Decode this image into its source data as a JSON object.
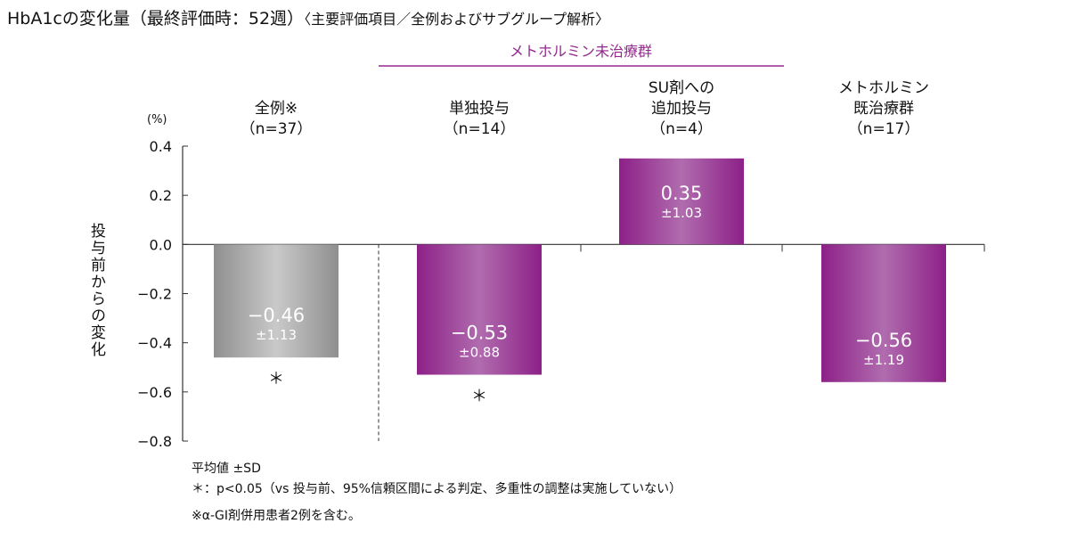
{
  "title": {
    "main": "HbA1cの変化量（最終評価時：52週）",
    "sub": "〈主要評価項目／全例およびサブグループ解析〉"
  },
  "notes": [
    "平均値 ±SD",
    "＊：p<0.05（vs 投与前、95%信頼区間による判定、多重性の調整は実施していない）",
    "※α-GI剤併用患者2例を含む。"
  ],
  "colors": {
    "gray": "#a5a5a5",
    "purple": "#93288f",
    "purple_light": "#b26db0",
    "axis": "#333333"
  },
  "chart_data": {
    "type": "bar",
    "unit_label": "(%)",
    "ylabel": "投与前からの変化",
    "ylim": [
      -0.8,
      0.4
    ],
    "yticks": [
      "0.4",
      "0.2",
      "0.0",
      "−0.2",
      "−0.4",
      "−0.6",
      "−0.8"
    ],
    "ytick_values": [
      0.4,
      0.2,
      0,
      -0.2,
      -0.4,
      -0.6,
      -0.8
    ],
    "group_label": "メトホルミン未治療群",
    "categories": [
      {
        "label": [
          "全例※",
          "（n=37）"
        ],
        "value": -0.46,
        "value_label": "−0.46",
        "sd_label": "±1.13",
        "significant": true,
        "color": "gray"
      },
      {
        "label": [
          "単独投与",
          "（n=14）"
        ],
        "value": -0.53,
        "value_label": "−0.53",
        "sd_label": "±0.88",
        "significant": true,
        "color": "purple"
      },
      {
        "label": [
          "SU剤への",
          "追加投与",
          "（n=4）"
        ],
        "value": 0.35,
        "value_label": "0.35",
        "sd_label": "±1.03",
        "significant": false,
        "color": "purple"
      },
      {
        "label": [
          "メトホルミン",
          "既治療群",
          "（n=17）"
        ],
        "value": -0.56,
        "value_label": "−0.56",
        "sd_label": "±1.19",
        "significant": false,
        "color": "purple"
      }
    ],
    "significance_marker": "＊",
    "grid": false
  }
}
